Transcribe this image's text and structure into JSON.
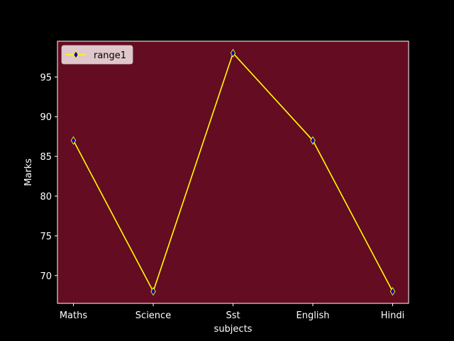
{
  "chart_data": {
    "type": "line",
    "categories": [
      "Maths",
      "Science",
      "Sst",
      "English",
      "Hindi"
    ],
    "series": [
      {
        "name": "range1",
        "values": [
          87,
          68,
          98,
          87,
          68
        ]
      }
    ],
    "xlabel": "subjects",
    "ylabel": "Marks",
    "ylim": [
      66.5,
      99.5
    ],
    "yticks": [
      70,
      75,
      80,
      85,
      90,
      95
    ],
    "grid": false,
    "legend": "top-left",
    "marker": "thin-diamond"
  },
  "colors": {
    "background": "#000000",
    "plot_background": "#640c21",
    "line": "#ffff00",
    "marker_fill": "#0000b3",
    "marker_edge": "#ffff00",
    "text": "#ffffff",
    "axis": "#ffffff",
    "legend_background": "#e6d2d6",
    "legend_text": "#000000"
  }
}
